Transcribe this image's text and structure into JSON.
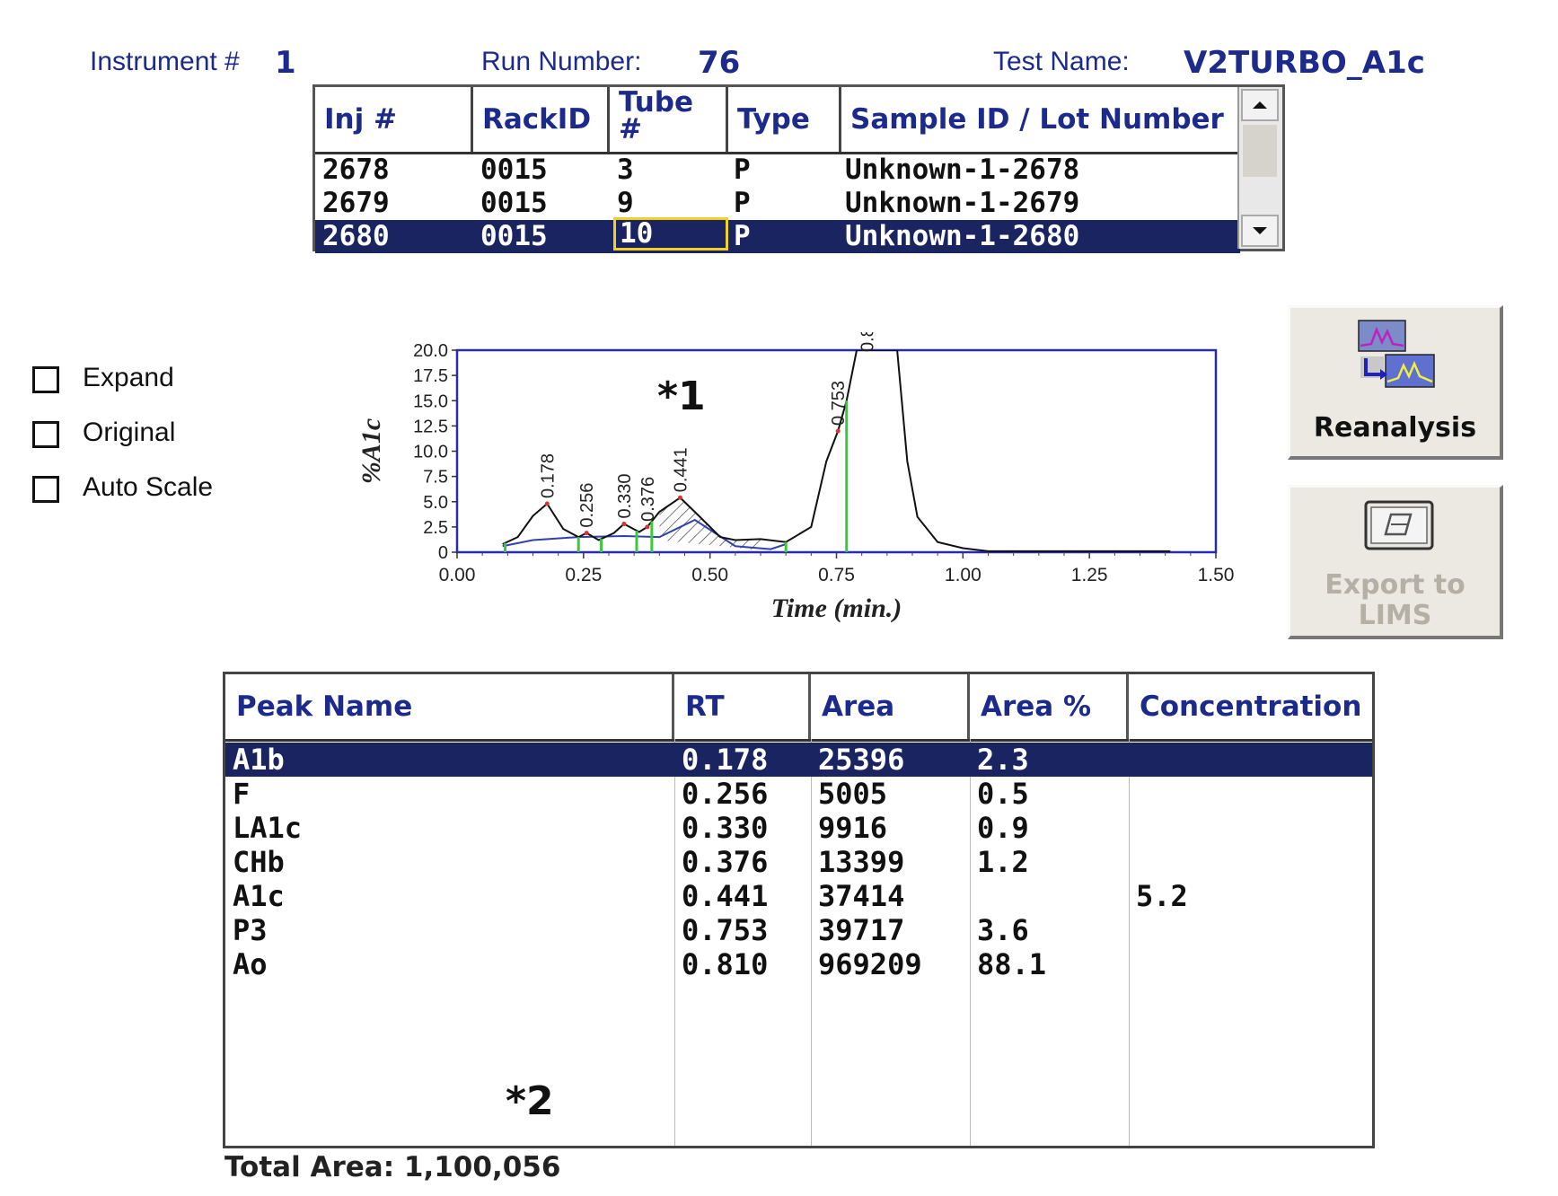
{
  "header": {
    "instrument_label": "Instrument #",
    "instrument_value": "1",
    "run_label": "Run Number:",
    "run_value": "76",
    "test_label": "Test Name:",
    "test_value": "V2TURBO_A1c"
  },
  "injections": {
    "columns": [
      "Inj #",
      "RackID",
      "Tube #",
      "Type",
      "Sample ID / Lot Number"
    ],
    "rows": [
      {
        "inj": "2678",
        "rack": "0015",
        "tube": "3",
        "type": "P",
        "sample": "Unknown-1-2678"
      },
      {
        "inj": "2679",
        "rack": "0015",
        "tube": "9",
        "type": "P",
        "sample": "Unknown-1-2679"
      },
      {
        "inj": "2680",
        "rack": "0015",
        "tube": "10",
        "type": "P",
        "sample": "Unknown-1-2680",
        "selected": true
      }
    ]
  },
  "options": {
    "expand": "Expand",
    "original": "Original",
    "auto_scale": "Auto Scale"
  },
  "buttons": {
    "reanalysis": "Reanalysis",
    "export_line1": "Export to",
    "export_line2": "LIMS"
  },
  "annotations": {
    "marker1": "*1",
    "marker2": "*2"
  },
  "chart_data": {
    "type": "line",
    "xlabel": "Time (min.)",
    "ylabel": "%A1c",
    "xlim": [
      0,
      1.5
    ],
    "ylim": [
      0,
      20
    ],
    "x_ticks": [
      "0.00",
      "0.25",
      "0.50",
      "0.75",
      "1.00",
      "1.25",
      "1.50"
    ],
    "y_ticks": [
      "0",
      "2.5",
      "5.0",
      "7.5",
      "10.0",
      "12.5",
      "15.0",
      "17.5",
      "20.0"
    ],
    "series": [
      {
        "x": [
          0.09,
          0.12,
          0.15,
          0.178,
          0.21,
          0.24,
          0.256,
          0.28,
          0.31,
          0.33,
          0.36,
          0.376,
          0.4,
          0.441,
          0.48,
          0.52,
          0.55,
          0.6,
          0.65,
          0.7,
          0.73,
          0.753,
          0.77,
          0.79,
          0.8,
          0.86,
          0.87,
          0.89,
          0.91,
          0.95,
          1.0,
          1.05,
          1.2,
          1.41
        ],
        "y": [
          0.8,
          1.5,
          3.6,
          4.8,
          2.3,
          1.5,
          1.9,
          1.2,
          1.9,
          2.8,
          2.0,
          2.5,
          4.0,
          5.4,
          3.5,
          1.5,
          1.2,
          1.3,
          1.0,
          2.5,
          9.0,
          12.0,
          15.0,
          20.0,
          20.0,
          20.0,
          20.0,
          9.0,
          3.5,
          1.0,
          0.4,
          0.1,
          0.1,
          0.1
        ]
      }
    ],
    "peaks": [
      {
        "label": "0.178",
        "x": 0.178,
        "y": 4.8
      },
      {
        "label": "0.256",
        "x": 0.256,
        "y": 1.9
      },
      {
        "label": "0.330",
        "x": 0.33,
        "y": 2.8
      },
      {
        "label": "0.376",
        "x": 0.376,
        "y": 2.5
      },
      {
        "label": "0.441",
        "x": 0.441,
        "y": 5.4
      },
      {
        "label": "0.753",
        "x": 0.753,
        "y": 12.0
      },
      {
        "label": "0.810",
        "x": 0.81,
        "y": 20.0
      }
    ],
    "peak_markers_x": [
      0.095,
      0.24,
      0.285,
      0.355,
      0.385,
      0.65,
      0.77
    ]
  },
  "peaks_table": {
    "columns": [
      "Peak Name",
      "RT",
      "Area",
      "Area %",
      "Concentration"
    ],
    "rows": [
      {
        "name": "A1b",
        "rt": "0.178",
        "area": "25396",
        "area_pct": "2.3",
        "conc": "",
        "selected": true
      },
      {
        "name": "F",
        "rt": "0.256",
        "area": "5005",
        "area_pct": "0.5",
        "conc": ""
      },
      {
        "name": "LA1c",
        "rt": "0.330",
        "area": "9916",
        "area_pct": "0.9",
        "conc": ""
      },
      {
        "name": "CHb",
        "rt": "0.376",
        "area": "13399",
        "area_pct": "1.2",
        "conc": ""
      },
      {
        "name": "A1c",
        "rt": "0.441",
        "area": "37414",
        "area_pct": "",
        "conc": "5.2"
      },
      {
        "name": "P3",
        "rt": "0.753",
        "area": "39717",
        "area_pct": "3.6",
        "conc": ""
      },
      {
        "name": "Ao",
        "rt": "0.810",
        "area": "969209",
        "area_pct": "88.1",
        "conc": ""
      }
    ]
  },
  "total_area": "Total Area: 1,100,056",
  "colors": {
    "header_text": "#1c2a8c",
    "selection": "#1a2460",
    "plot_frame": "#2a2ab0",
    "marker_green": "#3cc83c",
    "marker_red": "#e03030"
  }
}
